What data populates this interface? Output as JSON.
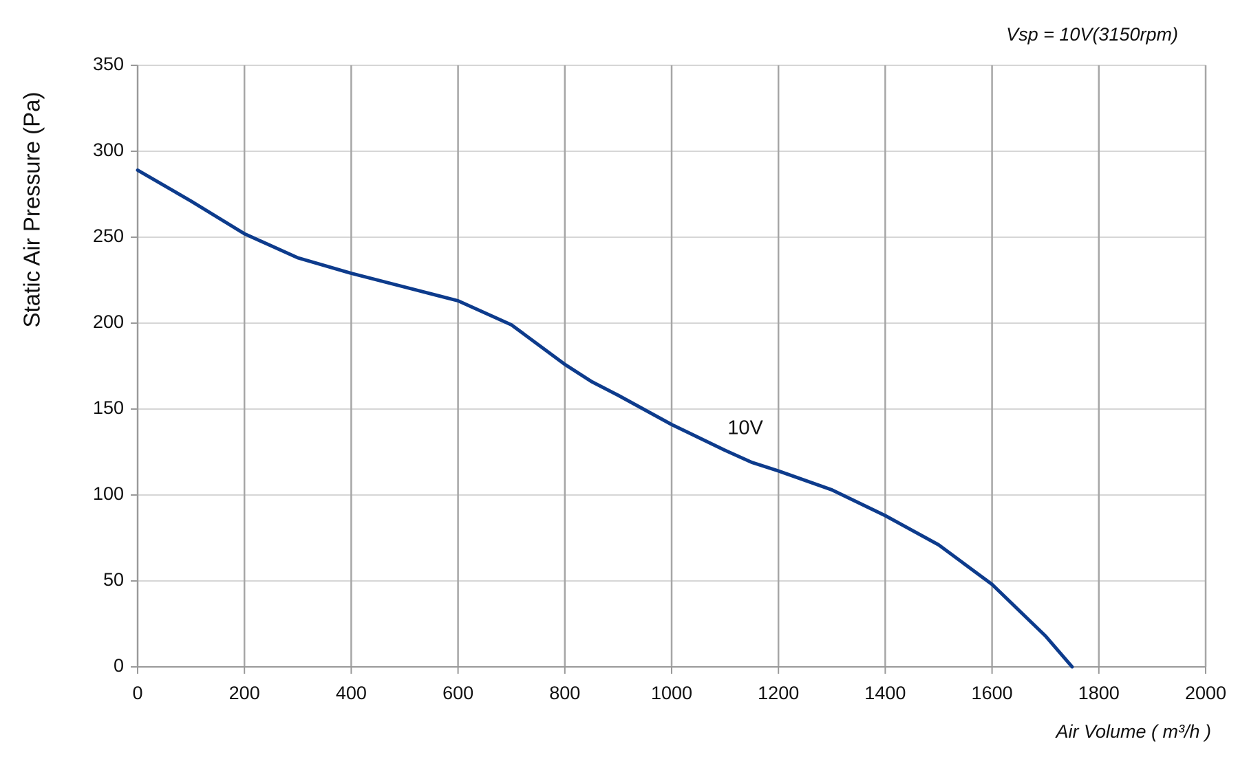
{
  "chart_data": {
    "type": "line",
    "title": "Vsp = 10V(3150rpm)",
    "x_label": "Air Volume ( m³/h )",
    "y_label": "Static Air Pressure  (Pa)",
    "x": [
      0,
      100,
      200,
      300,
      400,
      500,
      600,
      700,
      800,
      850,
      900,
      1000,
      1100,
      1150,
      1200,
      1300,
      1400,
      1500,
      1600,
      1700,
      1750
    ],
    "series": [
      {
        "name": "10V",
        "color": "#0d3b8c",
        "values": [
          289,
          271,
          252,
          238,
          229,
          221,
          213,
          199,
          176,
          166,
          158,
          141,
          126,
          119,
          114,
          103,
          88,
          71,
          48,
          18,
          0
        ]
      }
    ],
    "xlim": [
      0,
      2000
    ],
    "xticks": [
      0,
      200,
      400,
      600,
      800,
      1000,
      1200,
      1400,
      1600,
      1800,
      2000
    ],
    "ylim": [
      0,
      350
    ],
    "yticks": [
      0,
      50,
      100,
      150,
      200,
      250,
      300,
      350
    ],
    "grid": true
  }
}
